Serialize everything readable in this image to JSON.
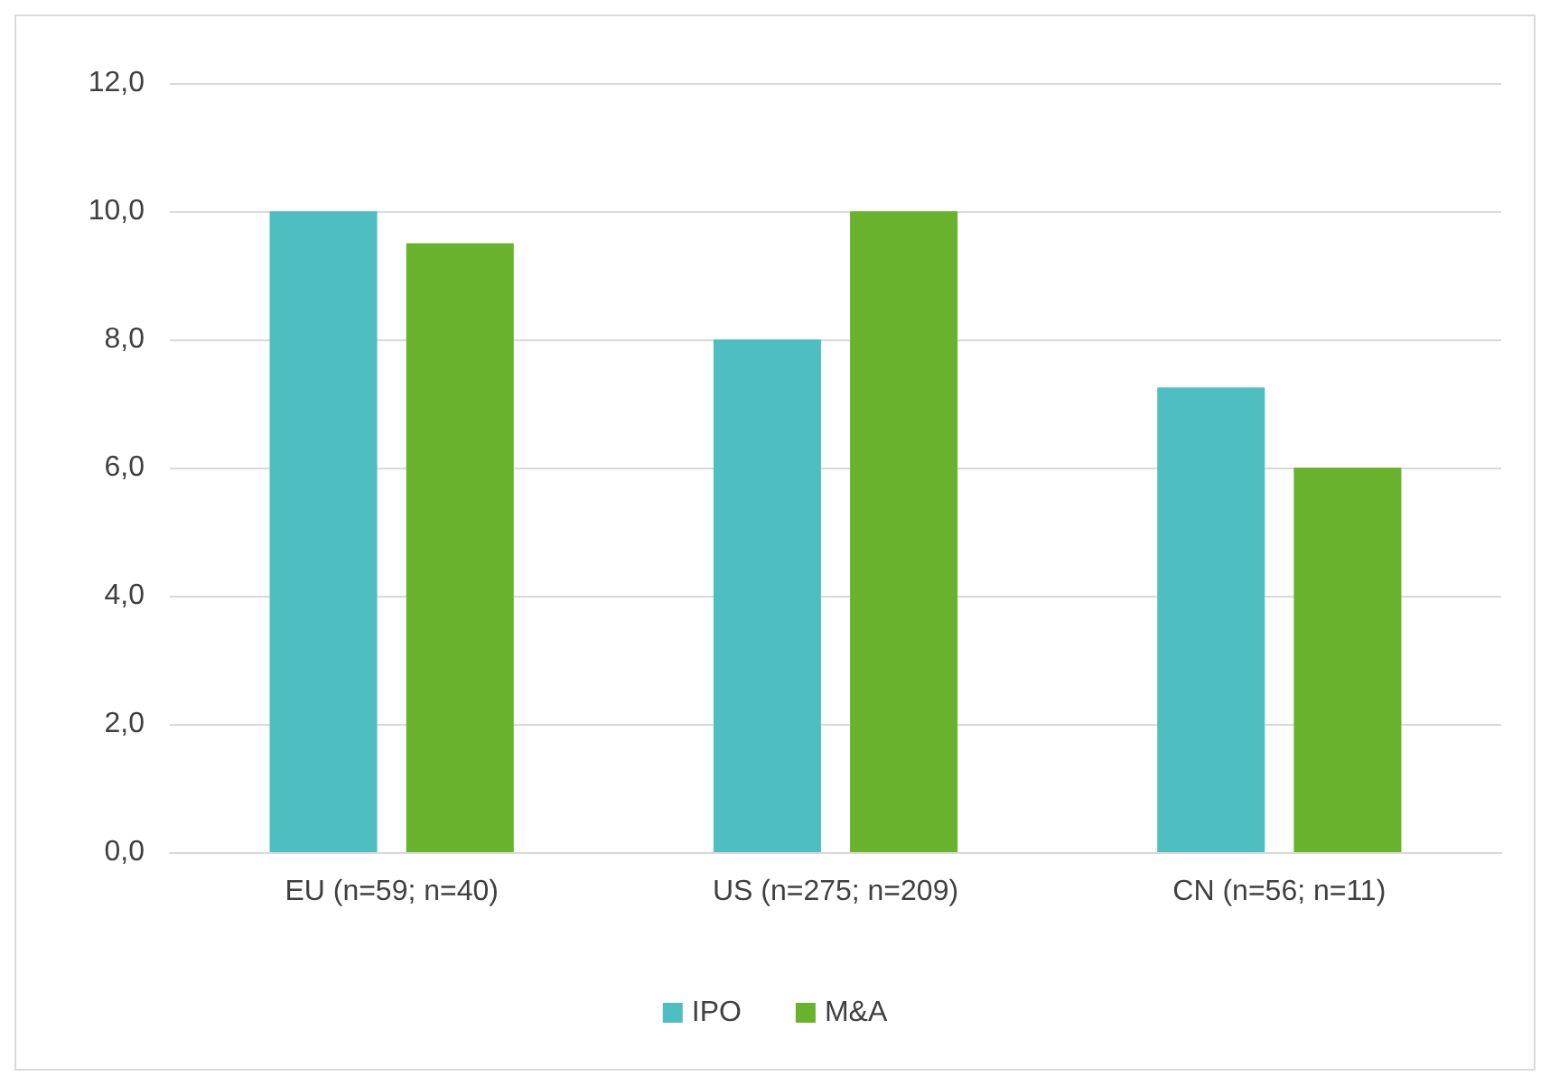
{
  "chart_data": {
    "type": "bar",
    "categories": [
      "EU (n=59; n=40)",
      "US (n=275; n=209)",
      "CN (n=56; n=11)"
    ],
    "series": [
      {
        "name": "IPO",
        "color": "#4fbec0",
        "values": [
          10.0,
          8.0,
          7.25
        ]
      },
      {
        "name": "M&A",
        "color": "#69b22e",
        "values": [
          9.5,
          10.0,
          6.0
        ]
      }
    ],
    "ylim": [
      0,
      12
    ],
    "yticks": [
      {
        "value": 0,
        "label": "0,0"
      },
      {
        "value": 2,
        "label": "2,0"
      },
      {
        "value": 4,
        "label": "4,0"
      },
      {
        "value": 6,
        "label": "6,0"
      },
      {
        "value": 8,
        "label": "8,0"
      },
      {
        "value": 10,
        "label": "10,0"
      },
      {
        "value": 12,
        "label": "12,0"
      }
    ],
    "grid": "y",
    "legend": "bottom"
  }
}
